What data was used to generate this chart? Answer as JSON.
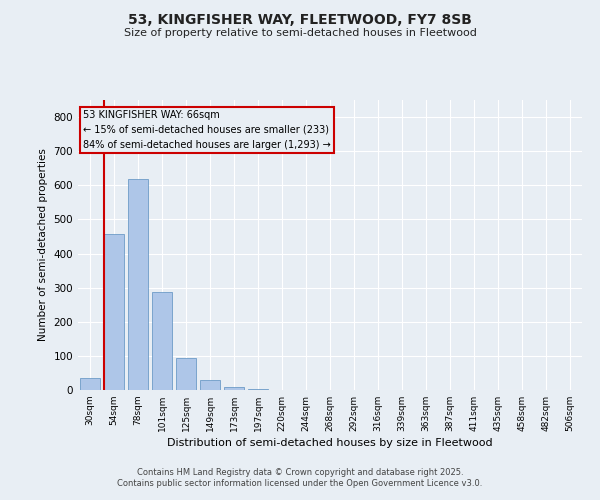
{
  "title1": "53, KINGFISHER WAY, FLEETWOOD, FY7 8SB",
  "title2": "Size of property relative to semi-detached houses in Fleetwood",
  "xlabel": "Distribution of semi-detached houses by size in Fleetwood",
  "ylabel": "Number of semi-detached properties",
  "categories": [
    "30sqm",
    "54sqm",
    "78sqm",
    "101sqm",
    "125sqm",
    "149sqm",
    "173sqm",
    "197sqm",
    "220sqm",
    "244sqm",
    "268sqm",
    "292sqm",
    "316sqm",
    "339sqm",
    "363sqm",
    "387sqm",
    "411sqm",
    "435sqm",
    "458sqm",
    "482sqm",
    "506sqm"
  ],
  "values": [
    35,
    458,
    617,
    287,
    93,
    30,
    8,
    2,
    0,
    0,
    0,
    0,
    0,
    0,
    0,
    0,
    0,
    0,
    0,
    0,
    0
  ],
  "bar_color": "#aec6e8",
  "bar_edge_color": "#5a8fc0",
  "bg_color": "#e8eef4",
  "grid_color": "#ffffff",
  "vline_color": "#cc0000",
  "annotation_title": "53 KINGFISHER WAY: 66sqm",
  "annotation_line2": "← 15% of semi-detached houses are smaller (233)",
  "annotation_line3": "84% of semi-detached houses are larger (1,293) →",
  "annotation_box_color": "#cc0000",
  "ylim": [
    0,
    850
  ],
  "yticks": [
    0,
    100,
    200,
    300,
    400,
    500,
    600,
    700,
    800
  ],
  "footer1": "Contains HM Land Registry data © Crown copyright and database right 2025.",
  "footer2": "Contains public sector information licensed under the Open Government Licence v3.0."
}
